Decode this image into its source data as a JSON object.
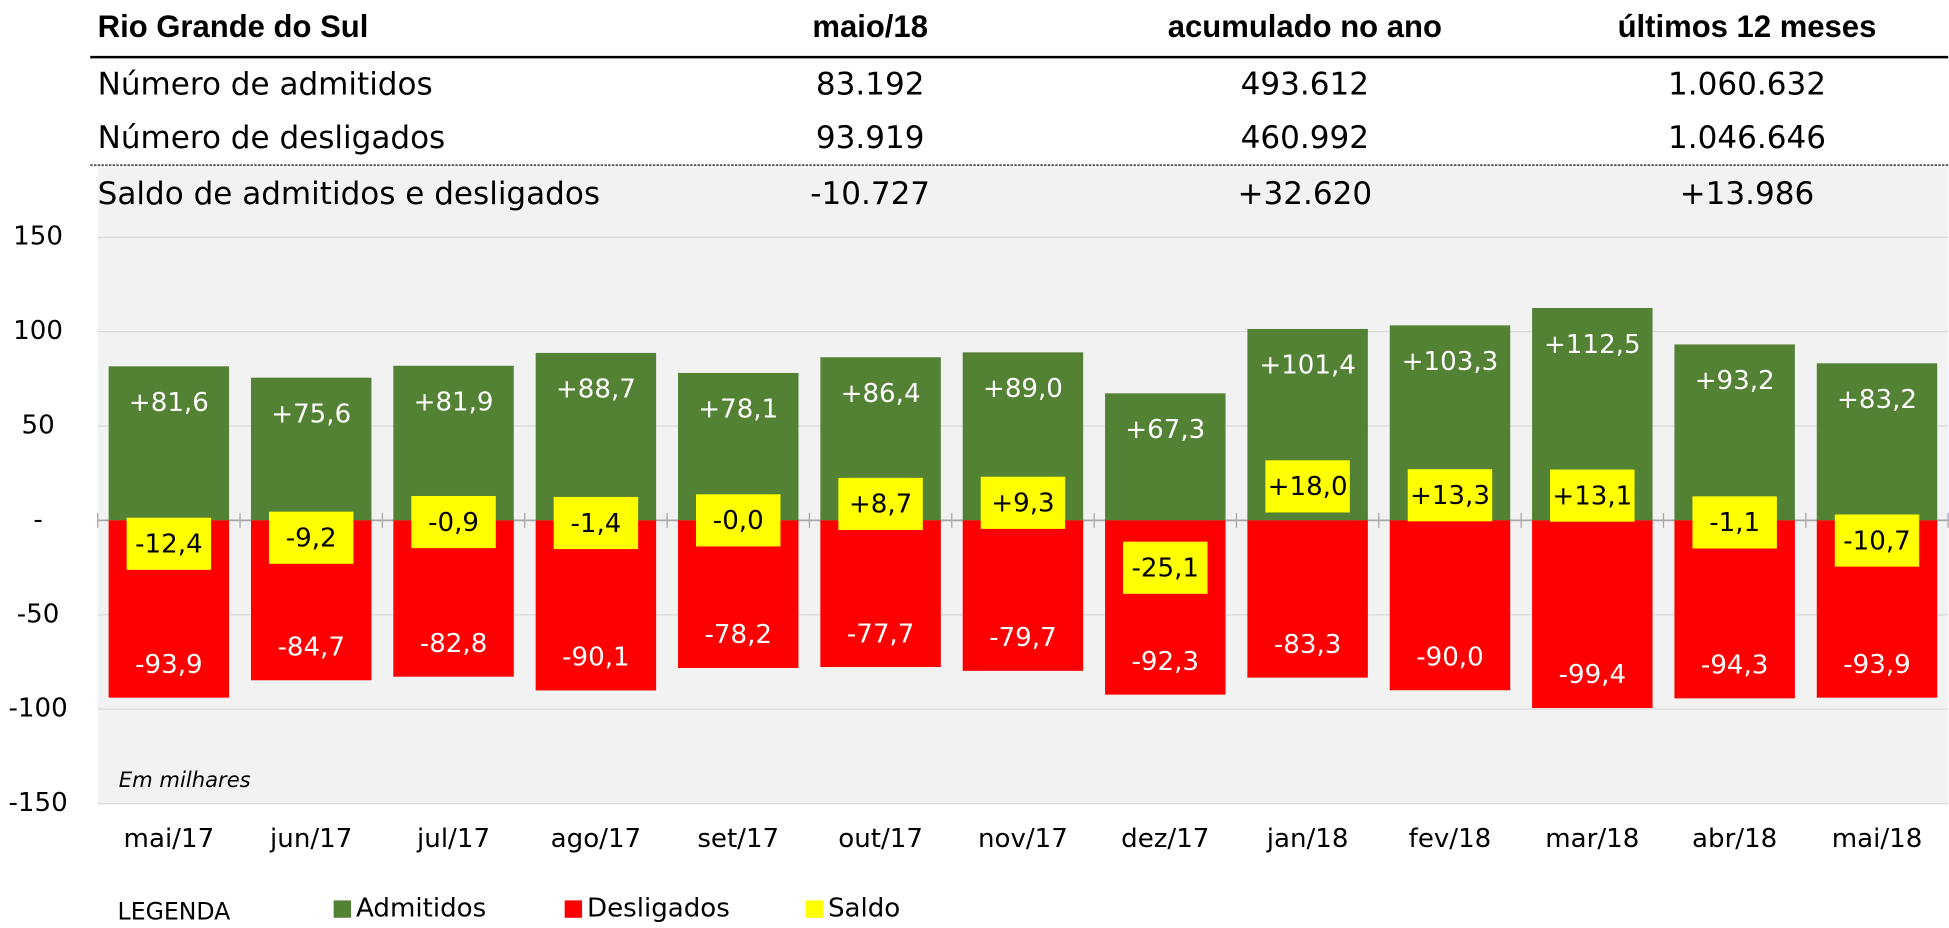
{
  "table": {
    "header": [
      "Rio Grande do Sul",
      "maio/18",
      "acumulado no ano",
      "últimos 12 meses"
    ],
    "rows": [
      [
        "Número de admitidos",
        "83.192",
        "493.612",
        "1.060.632"
      ],
      [
        "Número de desligados",
        "93.919",
        "460.992",
        "1.046.646"
      ],
      [
        "Saldo de admitidos e desligados",
        "-10.727",
        "+32.620",
        "+13.986"
      ]
    ]
  },
  "chart_data": {
    "type": "bar",
    "categories": [
      "mai/17",
      "jun/17",
      "jul/17",
      "ago/17",
      "set/17",
      "out/17",
      "nov/17",
      "dez/17",
      "jan/18",
      "fev/18",
      "mar/18",
      "abr/18",
      "mai/18"
    ],
    "series": [
      {
        "name": "Admitidos",
        "color": "#548235",
        "values": [
          81.6,
          75.6,
          81.9,
          88.7,
          78.1,
          86.4,
          89.0,
          67.3,
          101.4,
          103.3,
          112.5,
          93.2,
          83.2
        ],
        "value_labels": [
          "+81,6",
          "+75,6",
          "+81,9",
          "+88,7",
          "+78,1",
          "+86,4",
          "+89,0",
          "+67,3",
          "+101,4",
          "+103,3",
          "+112,5",
          "+93,2",
          "+83,2"
        ]
      },
      {
        "name": "Desligados",
        "color": "#ff0000",
        "values": [
          -93.9,
          -84.7,
          -82.8,
          -90.1,
          -78.2,
          -77.7,
          -79.7,
          -92.3,
          -83.3,
          -90.0,
          -99.4,
          -94.3,
          -93.9
        ],
        "value_labels": [
          "-93,9",
          "-84,7",
          "-82,8",
          "-90,1",
          "-78,2",
          "-77,7",
          "-79,7",
          "-92,3",
          "-83,3",
          "-90,0",
          "-99,4",
          "-94,3",
          "-93,9"
        ]
      },
      {
        "name": "Saldo",
        "color": "#ffff00",
        "values": [
          -12.4,
          -9.2,
          -0.9,
          -1.4,
          0,
          8.7,
          9.3,
          -25.1,
          18.0,
          13.3,
          13.1,
          -1.1,
          -10.7
        ],
        "value_labels": [
          "-12,4",
          "-9,2",
          "-0,9",
          "-1,4",
          "-0,0",
          "+8,7",
          "+9,3",
          "-25,1",
          "+18,0",
          "+13,3",
          "+13,1",
          "-1,1",
          "-10,7"
        ]
      }
    ],
    "ylim": [
      -150,
      150
    ],
    "yticks": [
      150,
      100,
      50,
      {
        "value": 0,
        "label": "-"
      },
      -50,
      -100,
      -150
    ],
    "grid": true,
    "annotation": "Em milhares",
    "legend_title": "LEGENDA"
  }
}
